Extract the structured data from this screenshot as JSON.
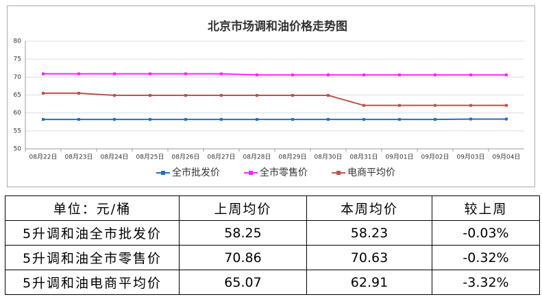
{
  "chart_data": {
    "type": "line",
    "title": "北京市场调和油价格走势图",
    "categories": [
      "08月22日",
      "08月23日",
      "08月24日",
      "08月25日",
      "08月26日",
      "08月27日",
      "08月28日",
      "08月29日",
      "08月30日",
      "08月31日",
      "09月01日",
      "09月02日",
      "09月03日",
      "09月04日"
    ],
    "series": [
      {
        "name": "全市批发价",
        "color": "#1f6fc1",
        "values": [
          58.2,
          58.2,
          58.2,
          58.2,
          58.2,
          58.2,
          58.2,
          58.2,
          58.2,
          58.2,
          58.2,
          58.2,
          58.3,
          58.3
        ]
      },
      {
        "name": "全市零售价",
        "color": "#ff22ff",
        "values": [
          70.9,
          70.9,
          70.9,
          70.9,
          70.9,
          70.9,
          70.6,
          70.6,
          70.6,
          70.6,
          70.6,
          70.6,
          70.6,
          70.6
        ]
      },
      {
        "name": "电商平均价",
        "color": "#c0504d",
        "values": [
          65.5,
          65.5,
          64.9,
          64.9,
          64.9,
          64.9,
          64.9,
          64.9,
          64.9,
          62.1,
          62.1,
          62.1,
          62.1,
          62.1
        ]
      }
    ],
    "ylim": [
      50,
      80
    ],
    "yticks": [
      50,
      55,
      60,
      65,
      70,
      75,
      80
    ],
    "grid": true,
    "legend": "bottom"
  },
  "table": {
    "header": [
      "单位：元/桶",
      "上周均价",
      "本周均价",
      "较上周"
    ],
    "rows": [
      [
        "5升调和油全市批发价",
        "58.25",
        "58.23",
        "-0.03%"
      ],
      [
        "5升调和油全市零售价",
        "70.86",
        "70.63",
        "-0.32%"
      ],
      [
        "5升调和油电商平均价",
        "65.07",
        "62.91",
        "-3.32%"
      ]
    ]
  }
}
